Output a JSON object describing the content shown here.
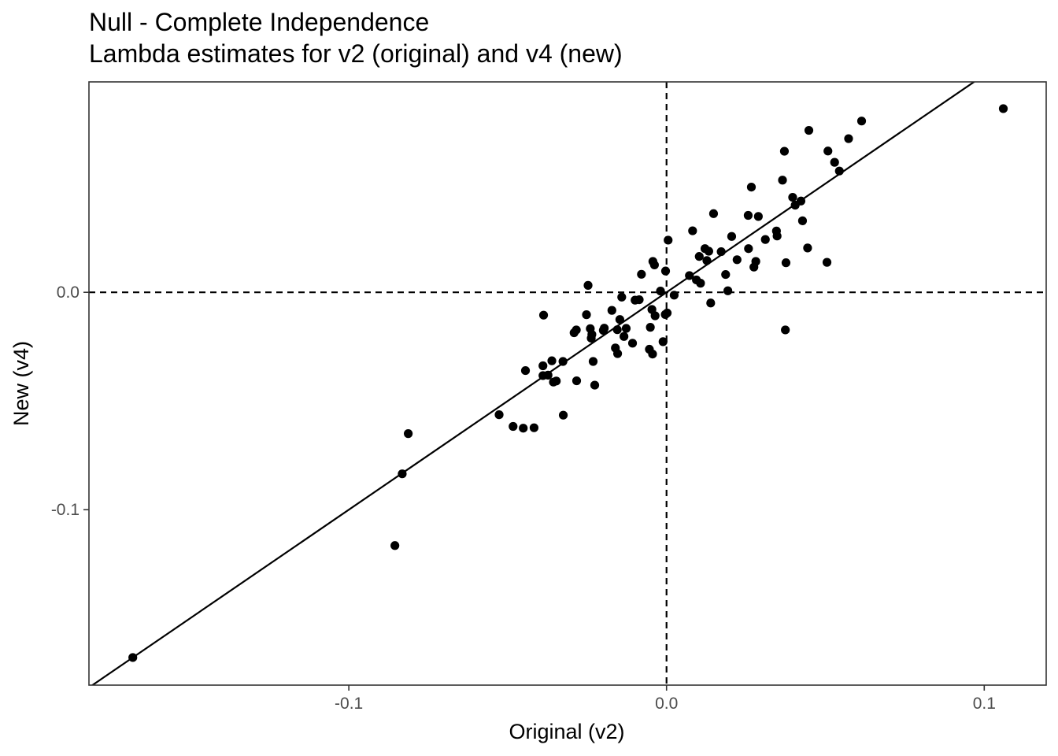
{
  "chart_data": {
    "type": "scatter",
    "title": "Null - Complete Independence",
    "subtitle": "Lambda estimates for v2 (original) and v4 (new)",
    "xlabel": "Original (v2)",
    "ylabel": "New (v4)",
    "xlim": [
      -0.1818,
      0.1195
    ],
    "ylim": [
      -0.1807,
      0.0968
    ],
    "x_ticks": [
      {
        "value": -0.1,
        "label": "-0.1"
      },
      {
        "value": 0.0,
        "label": "0.0"
      },
      {
        "value": 0.1,
        "label": "0.1"
      }
    ],
    "y_ticks": [
      {
        "value": -0.1,
        "label": "-0.1"
      },
      {
        "value": 0.0,
        "label": "0.0"
      }
    ],
    "grid": false,
    "reference_lines": {
      "identity_line": {
        "slope": 1,
        "intercept": 0,
        "style": "solid"
      },
      "vline_x": 0,
      "hline_y": 0,
      "ref_style": "dashed"
    },
    "point_color": "#000000",
    "points": [
      [
        -0.168,
        -0.168
      ],
      [
        -0.0855,
        -0.1165
      ],
      [
        -0.0832,
        -0.0835
      ],
      [
        -0.0813,
        -0.065
      ],
      [
        -0.0527,
        -0.0563
      ],
      [
        -0.0483,
        -0.0617
      ],
      [
        -0.0451,
        -0.0625
      ],
      [
        -0.0417,
        -0.0623
      ],
      [
        -0.0325,
        -0.0565
      ],
      [
        -0.0444,
        -0.036
      ],
      [
        -0.0389,
        -0.0338
      ],
      [
        -0.0389,
        -0.0383
      ],
      [
        -0.0373,
        -0.0381
      ],
      [
        -0.0361,
        -0.0315
      ],
      [
        -0.0356,
        -0.0413
      ],
      [
        -0.0347,
        -0.0408
      ],
      [
        -0.0326,
        -0.0318
      ],
      [
        -0.0283,
        -0.0407
      ],
      [
        -0.0387,
        -0.0105
      ],
      [
        -0.0291,
        -0.0186
      ],
      [
        -0.0284,
        -0.0173
      ],
      [
        -0.0252,
        -0.0103
      ],
      [
        -0.0247,
        0.0032
      ],
      [
        -0.024,
        -0.0167
      ],
      [
        -0.0237,
        -0.0211
      ],
      [
        -0.0235,
        -0.0194
      ],
      [
        -0.0231,
        -0.0318
      ],
      [
        -0.0226,
        -0.0427
      ],
      [
        -0.0199,
        -0.0175
      ],
      [
        -0.0196,
        -0.0165
      ],
      [
        -0.0172,
        -0.0083
      ],
      [
        -0.0161,
        -0.0256
      ],
      [
        -0.0154,
        -0.0282
      ],
      [
        -0.0155,
        -0.0172
      ],
      [
        -0.0147,
        -0.0125
      ],
      [
        -0.0141,
        -0.0022
      ],
      [
        -0.0134,
        -0.0203
      ],
      [
        -0.0127,
        -0.0166
      ],
      [
        -0.0107,
        -0.0234
      ],
      [
        -0.0099,
        -0.0036
      ],
      [
        -0.0086,
        -0.0034
      ],
      [
        -0.0079,
        0.0083
      ],
      [
        -0.0054,
        -0.0262
      ],
      [
        -0.0051,
        -0.0161
      ],
      [
        -0.0046,
        -0.0079
      ],
      [
        -0.0043,
        0.0142
      ],
      [
        -0.0044,
        -0.0284
      ],
      [
        -0.0038,
        0.0126
      ],
      [
        -0.0036,
        -0.0108
      ],
      [
        -0.0019,
        0.0006
      ],
      [
        -0.0011,
        -0.0227
      ],
      [
        -0.0004,
        -0.0102
      ],
      [
        -0.0003,
        0.0098
      ],
      [
        0.0002,
        -0.0095
      ],
      [
        0.0005,
        0.024
      ],
      [
        0.0024,
        -0.0013
      ],
      [
        0.0072,
        0.0077
      ],
      [
        0.0082,
        0.0283
      ],
      [
        0.0094,
        0.0057
      ],
      [
        0.0103,
        0.0165
      ],
      [
        0.0107,
        0.0042
      ],
      [
        0.0121,
        0.0201
      ],
      [
        0.0127,
        0.0146
      ],
      [
        0.0133,
        0.0189
      ],
      [
        0.0139,
        -0.0049
      ],
      [
        0.0148,
        0.0362
      ],
      [
        0.0172,
        0.0187
      ],
      [
        0.0186,
        0.0082
      ],
      [
        0.0193,
        0.0007
      ],
      [
        0.0205,
        0.0257
      ],
      [
        0.0222,
        0.015
      ],
      [
        0.0257,
        0.0354
      ],
      [
        0.0258,
        0.0201
      ],
      [
        0.0267,
        0.0484
      ],
      [
        0.0275,
        0.0116
      ],
      [
        0.0281,
        0.0142
      ],
      [
        0.0289,
        0.0349
      ],
      [
        0.0311,
        0.0243
      ],
      [
        0.0346,
        0.0282
      ],
      [
        0.0348,
        0.0259
      ],
      [
        0.0365,
        0.0516
      ],
      [
        0.0371,
        0.0649
      ],
      [
        0.0376,
        0.0136
      ],
      [
        0.0374,
        -0.0173
      ],
      [
        0.0397,
        0.0437
      ],
      [
        0.0405,
        0.0401
      ],
      [
        0.0423,
        0.042
      ],
      [
        0.0428,
        0.0329
      ],
      [
        0.0444,
        0.0204
      ],
      [
        0.0448,
        0.0745
      ],
      [
        0.0505,
        0.0138
      ],
      [
        0.0508,
        0.065
      ],
      [
        0.0529,
        0.0598
      ],
      [
        0.0544,
        0.0558
      ],
      [
        0.0573,
        0.0707
      ],
      [
        0.0614,
        0.0788
      ],
      [
        0.106,
        0.0845
      ]
    ]
  }
}
